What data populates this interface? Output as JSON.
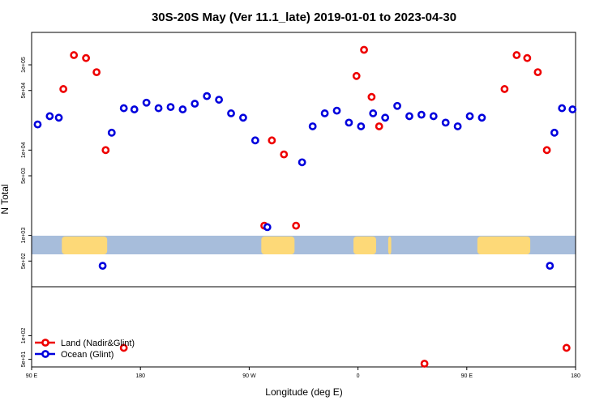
{
  "chart_data": {
    "type": "scatter",
    "title": "30S-20S May (Ver 11.1_late)   2019-01-01 to 2023-04-30",
    "xlabel": "Longitude (deg E)",
    "ylabel": "N Total",
    "xlim": [
      90,
      450
    ],
    "x_ticks": [
      {
        "value": 90,
        "label": "90 E"
      },
      {
        "value": 162,
        "label": "180"
      },
      {
        "value": 234,
        "label": "90 W"
      },
      {
        "value": 306,
        "label": "0"
      },
      {
        "value": 378,
        "label": "90 E"
      },
      {
        "value": 450,
        "label": "180"
      }
    ],
    "top_panel": {
      "scale": "log",
      "ylim": [
        250,
        240000
      ],
      "y_ticks": [
        {
          "value": 500,
          "label": "5e+02"
        },
        {
          "value": 1000,
          "label": "1e+03"
        },
        {
          "value": 5000,
          "label": "5e+03"
        },
        {
          "value": 10000,
          "label": "1e+04"
        },
        {
          "value": 50000,
          "label": "5e+04"
        },
        {
          "value": 100000,
          "label": "1e+05"
        }
      ]
    },
    "bottom_panel": {
      "scale": "log",
      "ylim": [
        40,
        420
      ],
      "y_ticks": [
        {
          "value": 50,
          "label": "5e+01"
        },
        {
          "value": 100,
          "label": "1e+02"
        }
      ]
    },
    "land_strip": {
      "ocean_color": "#a7bddb",
      "land_color": "#fdd978",
      "land_lon_ranges": [
        [
          110,
          140
        ],
        [
          242,
          264
        ],
        [
          303,
          318
        ],
        [
          326,
          328
        ],
        [
          385,
          420
        ]
      ]
    },
    "series": [
      {
        "name": "Land (Nadir&Glint)",
        "color": "#ee0000",
        "points": [
          {
            "panel": "top",
            "lon": 111,
            "value": 52000
          },
          {
            "panel": "top",
            "lon": 118,
            "value": 130000
          },
          {
            "panel": "top",
            "lon": 126,
            "value": 120000
          },
          {
            "panel": "top",
            "lon": 133,
            "value": 82000
          },
          {
            "panel": "top",
            "lon": 139,
            "value": 10000
          },
          {
            "panel": "top",
            "lon": 249,
            "value": 13000
          },
          {
            "panel": "top",
            "lon": 257,
            "value": 8900
          },
          {
            "panel": "top",
            "lon": 265,
            "value": 1300
          },
          {
            "panel": "top",
            "lon": 244,
            "value": 1300
          },
          {
            "panel": "top",
            "lon": 305,
            "value": 74000
          },
          {
            "panel": "top",
            "lon": 310,
            "value": 150000
          },
          {
            "panel": "top",
            "lon": 315,
            "value": 42000
          },
          {
            "panel": "top",
            "lon": 320,
            "value": 19000
          },
          {
            "panel": "top",
            "lon": 403,
            "value": 52000
          },
          {
            "panel": "top",
            "lon": 411,
            "value": 130000
          },
          {
            "panel": "top",
            "lon": 418,
            "value": 120000
          },
          {
            "panel": "top",
            "lon": 425,
            "value": 82000
          },
          {
            "panel": "top",
            "lon": 431,
            "value": 10000
          },
          {
            "panel": "bottom",
            "lon": 151,
            "value": 70
          },
          {
            "panel": "bottom",
            "lon": 350,
            "value": 44
          },
          {
            "panel": "bottom",
            "lon": 444,
            "value": 70
          }
        ]
      },
      {
        "name": "Ocean (Glint)",
        "color": "#0000dd",
        "points": [
          {
            "panel": "top",
            "lon": 94,
            "value": 20000
          },
          {
            "panel": "top",
            "lon": 102,
            "value": 25000
          },
          {
            "panel": "top",
            "lon": 108,
            "value": 24000
          },
          {
            "panel": "top",
            "lon": 137,
            "value": 440
          },
          {
            "panel": "top",
            "lon": 143,
            "value": 16000
          },
          {
            "panel": "top",
            "lon": 151,
            "value": 31000
          },
          {
            "panel": "top",
            "lon": 158,
            "value": 30000
          },
          {
            "panel": "top",
            "lon": 166,
            "value": 36000
          },
          {
            "panel": "top",
            "lon": 174,
            "value": 31000
          },
          {
            "panel": "top",
            "lon": 182,
            "value": 32000
          },
          {
            "panel": "top",
            "lon": 190,
            "value": 30000
          },
          {
            "panel": "top",
            "lon": 198,
            "value": 35000
          },
          {
            "panel": "top",
            "lon": 206,
            "value": 43000
          },
          {
            "panel": "top",
            "lon": 214,
            "value": 39000
          },
          {
            "panel": "top",
            "lon": 222,
            "value": 27000
          },
          {
            "panel": "top",
            "lon": 230,
            "value": 24000
          },
          {
            "panel": "top",
            "lon": 238,
            "value": 13000
          },
          {
            "panel": "top",
            "lon": 246,
            "value": 1250
          },
          {
            "panel": "top",
            "lon": 269,
            "value": 7200
          },
          {
            "panel": "top",
            "lon": 276,
            "value": 19000
          },
          {
            "panel": "top",
            "lon": 284,
            "value": 27000
          },
          {
            "panel": "top",
            "lon": 292,
            "value": 29000
          },
          {
            "panel": "top",
            "lon": 300,
            "value": 21000
          },
          {
            "panel": "top",
            "lon": 308,
            "value": 19000
          },
          {
            "panel": "top",
            "lon": 316,
            "value": 27000
          },
          {
            "panel": "top",
            "lon": 324,
            "value": 24000
          },
          {
            "panel": "top",
            "lon": 332,
            "value": 33000
          },
          {
            "panel": "top",
            "lon": 340,
            "value": 25000
          },
          {
            "panel": "top",
            "lon": 348,
            "value": 26000
          },
          {
            "panel": "top",
            "lon": 356,
            "value": 25000
          },
          {
            "panel": "top",
            "lon": 364,
            "value": 21000
          },
          {
            "panel": "top",
            "lon": 372,
            "value": 19000
          },
          {
            "panel": "top",
            "lon": 380,
            "value": 25000
          },
          {
            "panel": "top",
            "lon": 388,
            "value": 24000
          },
          {
            "panel": "top",
            "lon": 433,
            "value": 440
          },
          {
            "panel": "top",
            "lon": 436,
            "value": 16000
          },
          {
            "panel": "top",
            "lon": 441,
            "value": 31000
          },
          {
            "panel": "top",
            "lon": 448,
            "value": 30000
          }
        ]
      }
    ],
    "legend": {
      "position": "bottom-left",
      "entries": [
        {
          "label": "Land (Nadir&Glint)",
          "color": "#ee0000"
        },
        {
          "label": "Ocean (Glint)",
          "color": "#0000dd"
        }
      ]
    }
  }
}
